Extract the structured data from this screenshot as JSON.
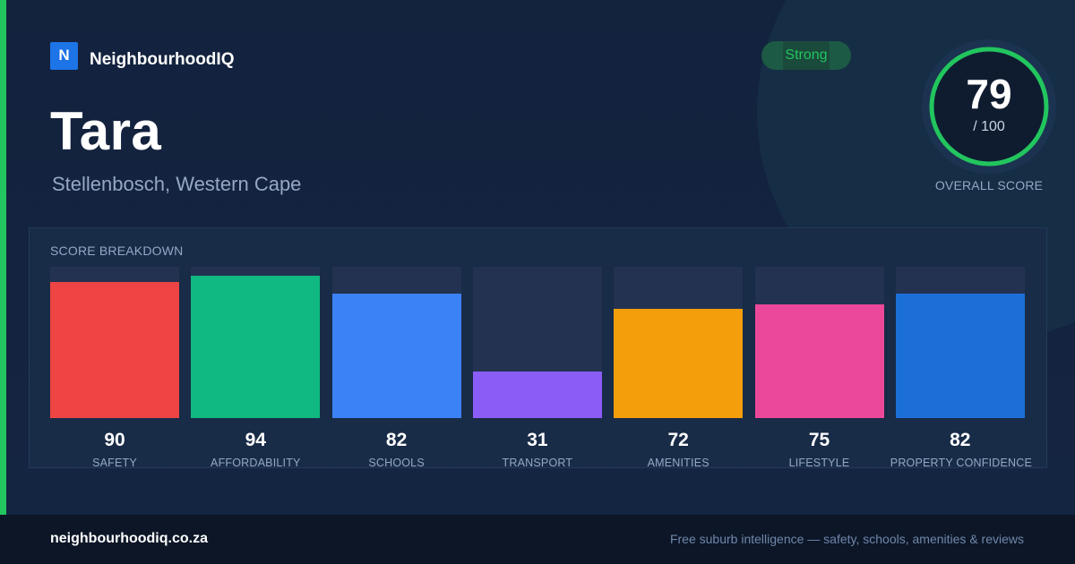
{
  "brand": {
    "logo_letter": "N",
    "name": "NeighbourhoodIQ"
  },
  "suburb": {
    "name": "Tara",
    "location": "Stellenbosch, Western Cape"
  },
  "badge": {
    "label": "Strong",
    "color": "#22c55e"
  },
  "overall": {
    "score": "79",
    "max": "/ 100",
    "caption": "OVERALL SCORE",
    "fraction": 0.79,
    "color": "#22c55e"
  },
  "breakdown": {
    "title": "SCORE BREAKDOWN",
    "max": 100,
    "items": [
      {
        "label": "SAFETY",
        "value": 90,
        "color": "#ef4444"
      },
      {
        "label": "AFFORDABILITY",
        "value": 94,
        "color": "#10b981"
      },
      {
        "label": "SCHOOLS",
        "value": 82,
        "color": "#3b82f6"
      },
      {
        "label": "TRANSPORT",
        "value": 31,
        "color": "#8b5cf6"
      },
      {
        "label": "AMENITIES",
        "value": 72,
        "color": "#f59e0b"
      },
      {
        "label": "LIFESTYLE",
        "value": 75,
        "color": "#ec4899"
      },
      {
        "label": "PROPERTY CONFIDENCE",
        "value": 82,
        "color": "#1d6fd8"
      }
    ]
  },
  "footer": {
    "domain": "neighbourhoodiq.co.za",
    "tagline": "Free suburb intelligence — safety, schools, amenities & reviews"
  },
  "colors": {
    "accent": "#22c55e",
    "background": "#13223d",
    "brand_blue": "#1d74e6"
  }
}
